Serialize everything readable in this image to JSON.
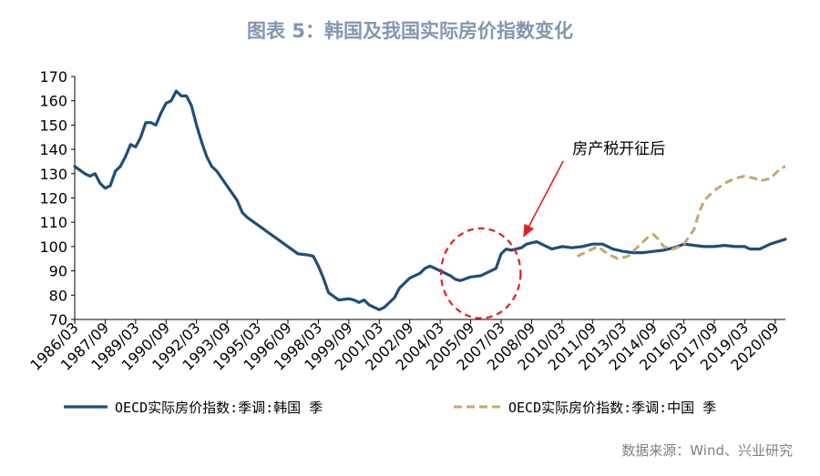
{
  "chart_data": {
    "type": "line",
    "title": "图表 5：韩国及我国实际房价指数变化",
    "ylim": [
      70,
      170
    ],
    "yticks": [
      70,
      80,
      90,
      100,
      110,
      120,
      130,
      140,
      150,
      160,
      170
    ],
    "xticks": [
      "1986/03",
      "1987/09",
      "1989/03",
      "1990/09",
      "1992/03",
      "1993/09",
      "1995/03",
      "1996/09",
      "1998/03",
      "1999/09",
      "2001/03",
      "2002/09",
      "2004/03",
      "2005/09",
      "2007/03",
      "2008/09",
      "2010/03",
      "2011/09",
      "2013/03",
      "2014/09",
      "2016/03",
      "2017/09",
      "2019/03",
      "2020/09"
    ],
    "x_start": "1986/03",
    "x_end": "2021/03",
    "legend_position": "bottom",
    "annotation": {
      "text": "房产税开征后",
      "arrow_to_date": "2008/03",
      "arrow_to_value": 100,
      "ellipse_center_date": "2006/03",
      "ellipse_center_value": 89,
      "ellipse_span_years": 3.5,
      "ellipse_span_value": 28
    },
    "series": [
      {
        "name": "OECD实际房价指数:季调:韩国 季",
        "color": "#1f4e79",
        "style": "solid",
        "points": [
          [
            1986.0,
            133
          ],
          [
            1986.5,
            130
          ],
          [
            1986.75,
            129
          ],
          [
            1987.0,
            130
          ],
          [
            1987.25,
            126
          ],
          [
            1987.5,
            124
          ],
          [
            1987.75,
            125
          ],
          [
            1988.0,
            131
          ],
          [
            1988.25,
            133
          ],
          [
            1988.5,
            137
          ],
          [
            1988.75,
            142
          ],
          [
            1989.0,
            141
          ],
          [
            1989.25,
            145
          ],
          [
            1989.5,
            151
          ],
          [
            1989.75,
            151
          ],
          [
            1990.0,
            150
          ],
          [
            1990.25,
            155
          ],
          [
            1990.5,
            159
          ],
          [
            1990.75,
            160
          ],
          [
            1991.0,
            164
          ],
          [
            1991.25,
            162
          ],
          [
            1991.5,
            162
          ],
          [
            1991.75,
            158
          ],
          [
            1992.0,
            150
          ],
          [
            1992.25,
            143
          ],
          [
            1992.5,
            137
          ],
          [
            1992.75,
            133
          ],
          [
            1993.0,
            131
          ],
          [
            1993.5,
            125
          ],
          [
            1994.0,
            119
          ],
          [
            1994.25,
            114
          ],
          [
            1994.5,
            112
          ],
          [
            1995.0,
            109
          ],
          [
            1995.5,
            106
          ],
          [
            1996.0,
            103
          ],
          [
            1996.5,
            100
          ],
          [
            1997.0,
            97
          ],
          [
            1997.5,
            96.5
          ],
          [
            1997.75,
            96
          ],
          [
            1998.0,
            92
          ],
          [
            1998.25,
            87
          ],
          [
            1998.5,
            81
          ],
          [
            1999.0,
            78
          ],
          [
            1999.5,
            78.5
          ],
          [
            1999.75,
            78
          ],
          [
            2000.0,
            77
          ],
          [
            2000.25,
            78
          ],
          [
            2000.5,
            76
          ],
          [
            2001.0,
            74
          ],
          [
            2001.25,
            75
          ],
          [
            2001.75,
            79
          ],
          [
            2002.0,
            83
          ],
          [
            2002.5,
            87
          ],
          [
            2003.0,
            89
          ],
          [
            2003.25,
            91
          ],
          [
            2003.5,
            92
          ],
          [
            2003.75,
            91
          ],
          [
            2004.0,
            90
          ],
          [
            2004.5,
            88
          ],
          [
            2004.75,
            86.5
          ],
          [
            2005.0,
            86
          ],
          [
            2005.5,
            87.5
          ],
          [
            2006.0,
            88
          ],
          [
            2006.5,
            90
          ],
          [
            2006.75,
            91
          ],
          [
            2007.0,
            97
          ],
          [
            2007.25,
            99
          ],
          [
            2007.5,
            98.5
          ],
          [
            2008.0,
            99.5
          ],
          [
            2008.25,
            101
          ],
          [
            2008.75,
            102
          ],
          [
            2009.25,
            100
          ],
          [
            2009.5,
            99
          ],
          [
            2010.0,
            100
          ],
          [
            2010.5,
            99.5
          ],
          [
            2011.0,
            100
          ],
          [
            2011.5,
            101
          ],
          [
            2012.0,
            101
          ],
          [
            2012.5,
            99
          ],
          [
            2013.0,
            98
          ],
          [
            2013.5,
            97.5
          ],
          [
            2014.0,
            97.5
          ],
          [
            2014.5,
            98
          ],
          [
            2015.0,
            98.5
          ],
          [
            2015.5,
            99.5
          ],
          [
            2016.0,
            101
          ],
          [
            2016.5,
            100.5
          ],
          [
            2017.0,
            100
          ],
          [
            2017.5,
            100
          ],
          [
            2018.0,
            100.5
          ],
          [
            2018.5,
            100
          ],
          [
            2019.0,
            100
          ],
          [
            2019.25,
            99
          ],
          [
            2019.75,
            99
          ],
          [
            2020.25,
            101
          ],
          [
            2021.0,
            103
          ]
        ]
      },
      {
        "name": "OECD实际房价指数:季调:中国 季",
        "color": "#c4a86b",
        "style": "dashed",
        "points": [
          [
            2010.75,
            96
          ],
          [
            2011.25,
            98
          ],
          [
            2011.75,
            100
          ],
          [
            2012.25,
            97
          ],
          [
            2012.75,
            95
          ],
          [
            2013.25,
            96
          ],
          [
            2013.75,
            100
          ],
          [
            2014.25,
            104
          ],
          [
            2014.5,
            105
          ],
          [
            2014.75,
            103
          ],
          [
            2015.0,
            100
          ],
          [
            2015.5,
            99
          ],
          [
            2016.0,
            101
          ],
          [
            2016.5,
            107
          ],
          [
            2016.75,
            114
          ],
          [
            2017.0,
            119
          ],
          [
            2017.5,
            123
          ],
          [
            2018.0,
            126
          ],
          [
            2018.5,
            128
          ],
          [
            2019.0,
            129
          ],
          [
            2019.5,
            128
          ],
          [
            2019.75,
            127
          ],
          [
            2020.25,
            128
          ],
          [
            2020.75,
            132
          ],
          [
            2021.0,
            133
          ]
        ]
      }
    ]
  },
  "source": "数据来源：Wind、兴业研究"
}
